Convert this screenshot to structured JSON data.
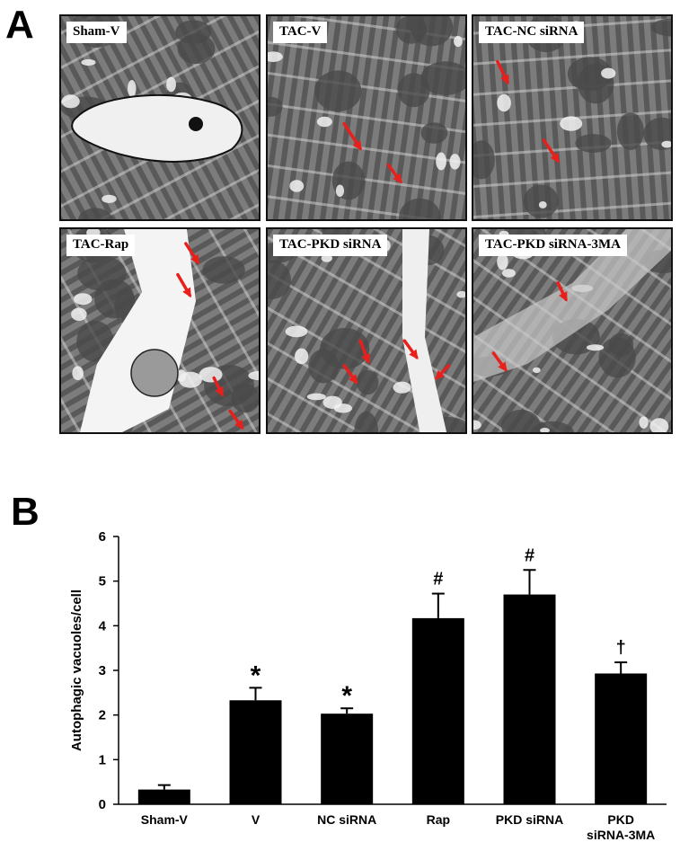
{
  "panel_a": {
    "letter": "A",
    "images": [
      {
        "label": "Sham-V",
        "arrows": []
      },
      {
        "label": "TAC-V",
        "arrows": [
          [
            0.38,
            0.52,
            0.46,
            0.64
          ],
          [
            0.6,
            0.72,
            0.66,
            0.8
          ]
        ]
      },
      {
        "label": "TAC-NC siRNA",
        "arrows": [
          [
            0.12,
            0.22,
            0.17,
            0.32
          ],
          [
            0.35,
            0.6,
            0.42,
            0.7
          ]
        ]
      },
      {
        "label": "TAC-Rap",
        "arrows": [
          [
            0.62,
            0.07,
            0.68,
            0.16
          ],
          [
            0.58,
            0.22,
            0.64,
            0.32
          ],
          [
            0.76,
            0.72,
            0.8,
            0.8
          ],
          [
            0.84,
            0.88,
            0.9,
            0.96
          ]
        ]
      },
      {
        "label": "TAC-PKD siRNA",
        "arrows": [
          [
            0.46,
            0.54,
            0.5,
            0.64
          ],
          [
            0.38,
            0.66,
            0.44,
            0.74
          ],
          [
            0.68,
            0.54,
            0.74,
            0.62
          ],
          [
            0.9,
            0.66,
            0.84,
            0.72
          ]
        ]
      },
      {
        "label": "TAC-PKD siRNA-3MA",
        "arrows": [
          [
            0.42,
            0.26,
            0.46,
            0.34
          ],
          [
            0.1,
            0.6,
            0.16,
            0.68
          ]
        ]
      }
    ]
  },
  "panel_b": {
    "letter": "B",
    "chart_data": {
      "type": "bar",
      "categories": [
        "Sham-V",
        "V",
        "NC siRNA",
        "Rap",
        "PKD siRNA",
        "PKD\nsiRNA-3MA"
      ],
      "values": [
        0.33,
        2.33,
        2.03,
        4.17,
        4.7,
        2.93
      ],
      "errors": [
        0.1,
        0.28,
        0.12,
        0.55,
        0.55,
        0.25
      ],
      "annotations": [
        "",
        "*",
        "*",
        "#",
        "#",
        "†"
      ],
      "ylabel": "Autophagic  vacuoles/cell",
      "xlabel": "",
      "ylim": [
        0,
        6
      ],
      "yticks": [
        0,
        1,
        2,
        3,
        4,
        5,
        6
      ],
      "grid": false,
      "bar_color": "#000000"
    }
  },
  "colors": {
    "arrow": "#e8201c",
    "bar": "#000000"
  }
}
